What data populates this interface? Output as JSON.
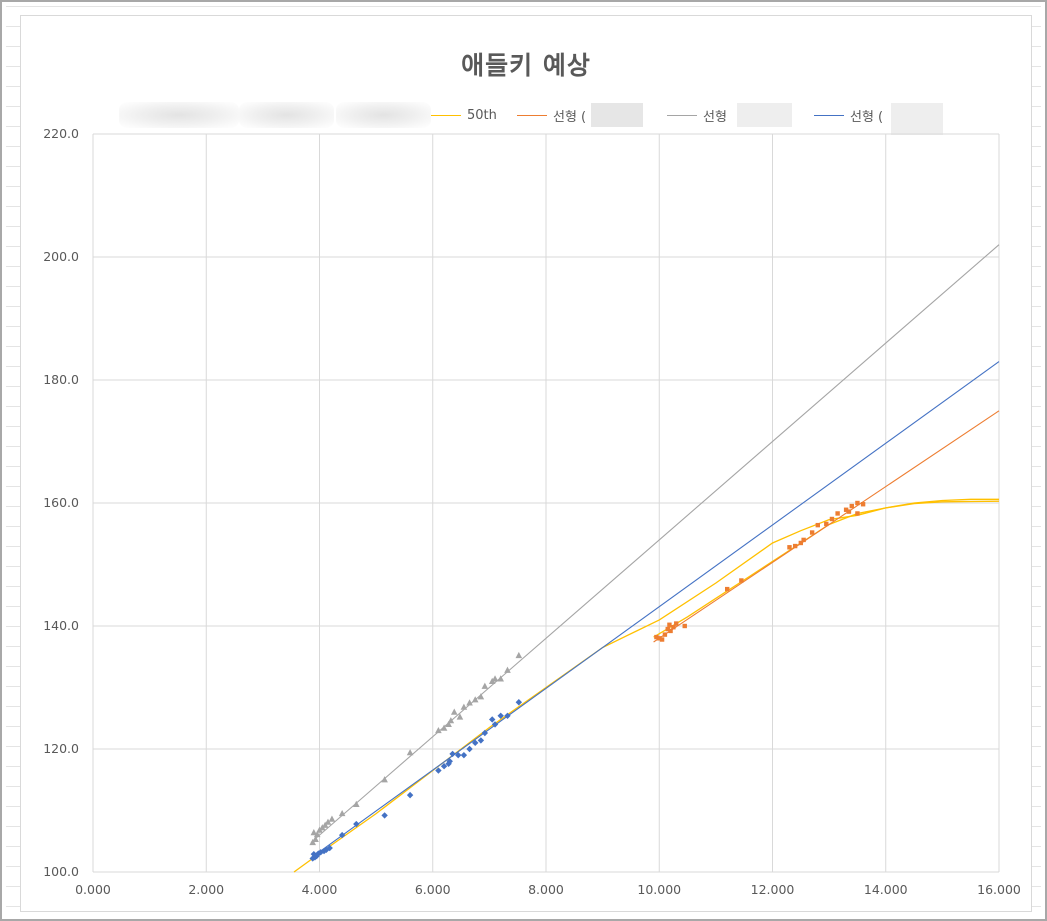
{
  "chart_data": {
    "type": "scatter",
    "title": "애들키 예상",
    "xlabel": "",
    "ylabel": "",
    "xlim": [
      0,
      16
    ],
    "ylim": [
      100,
      220
    ],
    "x_ticks": [
      "0.000",
      "2.000",
      "4.000",
      "6.000",
      "8.000",
      "10.000",
      "12.000",
      "14.000",
      "16.000"
    ],
    "y_ticks": [
      "100.0",
      "120.0",
      "140.0",
      "160.0",
      "180.0",
      "200.0",
      "220.0"
    ],
    "grid": true,
    "legend_position": "top",
    "legend": [
      {
        "label": "",
        "color": "#cccccc",
        "blurred": true
      },
      {
        "label": "",
        "color": "#cccccc",
        "blurred": true
      },
      {
        "label": "",
        "color": "#cccccc",
        "blurred": true
      },
      {
        "label": "50th",
        "color": "#ffc000"
      },
      {
        "label": "선형 (",
        "color": "#ed7d31",
        "partially_obscured": true
      },
      {
        "label": "선형",
        "color": "#a5a5a5",
        "partially_obscured": true
      },
      {
        "label": "선형 (",
        "color": "#4472c4",
        "partially_obscured": true
      }
    ],
    "series": [
      {
        "name": "",
        "kind": "points",
        "marker": "diamond",
        "color": "#4472c4",
        "points": [
          [
            3.88,
            102.2
          ],
          [
            3.9,
            102.9
          ],
          [
            3.92,
            102.4
          ],
          [
            3.95,
            102.6
          ],
          [
            3.98,
            103.0
          ],
          [
            4.02,
            103.2
          ],
          [
            4.08,
            103.4
          ],
          [
            4.12,
            103.6
          ],
          [
            4.18,
            103.9
          ],
          [
            4.4,
            106.0
          ],
          [
            4.65,
            107.8
          ],
          [
            5.15,
            109.2
          ],
          [
            5.6,
            112.5
          ],
          [
            6.1,
            116.5
          ],
          [
            6.2,
            117.2
          ],
          [
            6.28,
            117.6
          ],
          [
            6.3,
            118.0
          ],
          [
            6.35,
            119.2
          ],
          [
            6.45,
            119.0
          ],
          [
            6.55,
            119.0
          ],
          [
            6.65,
            120.0
          ],
          [
            6.75,
            121.0
          ],
          [
            6.85,
            121.4
          ],
          [
            6.92,
            122.6
          ],
          [
            7.05,
            124.8
          ],
          [
            7.1,
            124.0
          ],
          [
            7.2,
            125.4
          ],
          [
            7.32,
            125.4
          ],
          [
            7.52,
            127.6
          ]
        ]
      },
      {
        "name": "",
        "kind": "points",
        "marker": "triangle",
        "color": "#a5a5a5",
        "points": [
          [
            3.88,
            104.8
          ],
          [
            3.9,
            106.4
          ],
          [
            3.93,
            105.3
          ],
          [
            3.96,
            106.1
          ],
          [
            4.0,
            106.8
          ],
          [
            4.05,
            107.2
          ],
          [
            4.1,
            107.6
          ],
          [
            4.15,
            108.1
          ],
          [
            4.22,
            108.6
          ],
          [
            4.4,
            109.5
          ],
          [
            4.65,
            111.0
          ],
          [
            5.15,
            115.0
          ],
          [
            5.6,
            119.4
          ],
          [
            6.1,
            123.0
          ],
          [
            6.2,
            123.4
          ],
          [
            6.28,
            124.0
          ],
          [
            6.32,
            124.6
          ],
          [
            6.38,
            126.0
          ],
          [
            6.48,
            125.2
          ],
          [
            6.55,
            126.8
          ],
          [
            6.65,
            127.5
          ],
          [
            6.75,
            128.0
          ],
          [
            6.85,
            128.5
          ],
          [
            6.92,
            130.2
          ],
          [
            7.05,
            131.0
          ],
          [
            7.1,
            131.4
          ],
          [
            7.2,
            131.4
          ],
          [
            7.32,
            132.8
          ],
          [
            7.52,
            135.2
          ]
        ]
      },
      {
        "name": "",
        "kind": "points",
        "marker": "square",
        "color": "#ed7d31",
        "points": [
          [
            9.95,
            138.2
          ],
          [
            10.0,
            138.0
          ],
          [
            10.05,
            137.8
          ],
          [
            10.1,
            138.6
          ],
          [
            10.15,
            139.5
          ],
          [
            10.18,
            140.2
          ],
          [
            10.2,
            139.2
          ],
          [
            10.25,
            139.8
          ],
          [
            10.3,
            140.4
          ],
          [
            10.45,
            140.0
          ],
          [
            11.2,
            146.0
          ],
          [
            11.45,
            147.4
          ],
          [
            12.3,
            152.8
          ],
          [
            12.4,
            153.0
          ],
          [
            12.5,
            153.5
          ],
          [
            12.55,
            154.0
          ],
          [
            12.7,
            155.2
          ],
          [
            12.8,
            156.4
          ],
          [
            12.95,
            156.6
          ],
          [
            13.05,
            157.4
          ],
          [
            13.15,
            158.3
          ],
          [
            13.3,
            158.9
          ],
          [
            13.35,
            158.6
          ],
          [
            13.4,
            159.5
          ],
          [
            13.5,
            160.0
          ],
          [
            13.5,
            158.3
          ],
          [
            13.6,
            159.8
          ]
        ]
      },
      {
        "name": "50th",
        "kind": "curve",
        "color": "#ffc000",
        "points": [
          [
            3.55,
            100.0
          ],
          [
            4.0,
            103.0
          ],
          [
            5.0,
            109.5
          ],
          [
            6.0,
            116.5
          ],
          [
            7.0,
            123.5
          ],
          [
            8.0,
            130.0
          ],
          [
            9.0,
            136.5
          ],
          [
            10.0,
            141.0
          ],
          [
            11.0,
            147.0
          ],
          [
            12.0,
            153.5
          ],
          [
            12.5,
            155.5
          ],
          [
            13.0,
            157.3
          ],
          [
            13.5,
            158.0
          ],
          [
            14.0,
            159.2
          ],
          [
            14.5,
            160.0
          ],
          [
            15.0,
            160.4
          ],
          [
            15.5,
            160.6
          ],
          [
            16.0,
            160.6
          ]
        ]
      },
      {
        "name": "",
        "kind": "curve",
        "color": "#ffc000",
        "points": [
          [
            9.9,
            138.2
          ],
          [
            10.5,
            141.5
          ],
          [
            11.0,
            144.5
          ],
          [
            11.5,
            147.5
          ],
          [
            12.0,
            150.5
          ],
          [
            12.5,
            153.5
          ],
          [
            13.0,
            156.5
          ],
          [
            13.5,
            158.3
          ],
          [
            14.0,
            159.2
          ],
          [
            14.5,
            159.9
          ],
          [
            15.0,
            160.2
          ],
          [
            16.0,
            160.3
          ]
        ]
      },
      {
        "name": "선형 (",
        "kind": "trendline",
        "color": "#ed7d31",
        "points": [
          [
            9.9,
            137.4
          ],
          [
            16.0,
            175.0
          ]
        ]
      },
      {
        "name": "선형",
        "kind": "trendline",
        "color": "#a5a5a5",
        "points": [
          [
            3.85,
            104.8
          ],
          [
            16.0,
            202.0
          ]
        ]
      },
      {
        "name": "선형 (",
        "kind": "trendline",
        "color": "#4472c4",
        "points": [
          [
            3.85,
            102.3
          ],
          [
            16.0,
            183.0
          ]
        ]
      }
    ]
  }
}
